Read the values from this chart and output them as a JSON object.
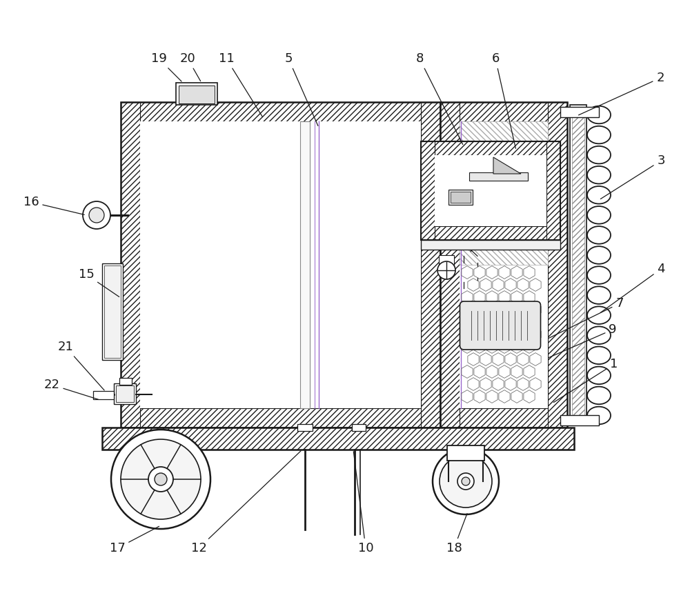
{
  "bg_color": "#ffffff",
  "line_color": "#1a1a1a",
  "annotations": [
    [
      "1",
      890,
      528,
      800,
      585
    ],
    [
      "2",
      957,
      113,
      836,
      168
    ],
    [
      "3",
      958,
      233,
      868,
      290
    ],
    [
      "4",
      958,
      390,
      868,
      455
    ],
    [
      "5",
      418,
      85,
      462,
      185
    ],
    [
      "6",
      718,
      85,
      748,
      218
    ],
    [
      "7",
      898,
      440,
      792,
      492
    ],
    [
      "8",
      608,
      85,
      672,
      212
    ],
    [
      "9",
      888,
      478,
      792,
      520
    ],
    [
      "10",
      530,
      795,
      512,
      652
    ],
    [
      "11",
      328,
      85,
      382,
      172
    ],
    [
      "12",
      288,
      795,
      438,
      652
    ],
    [
      "15",
      125,
      398,
      175,
      432
    ],
    [
      "16",
      45,
      293,
      125,
      312
    ],
    [
      "17",
      170,
      795,
      233,
      762
    ],
    [
      "18",
      658,
      795,
      678,
      742
    ],
    [
      "19",
      230,
      85,
      265,
      120
    ],
    [
      "20",
      272,
      85,
      292,
      120
    ],
    [
      "21",
      95,
      503,
      153,
      568
    ],
    [
      "22",
      75,
      558,
      145,
      580
    ]
  ]
}
